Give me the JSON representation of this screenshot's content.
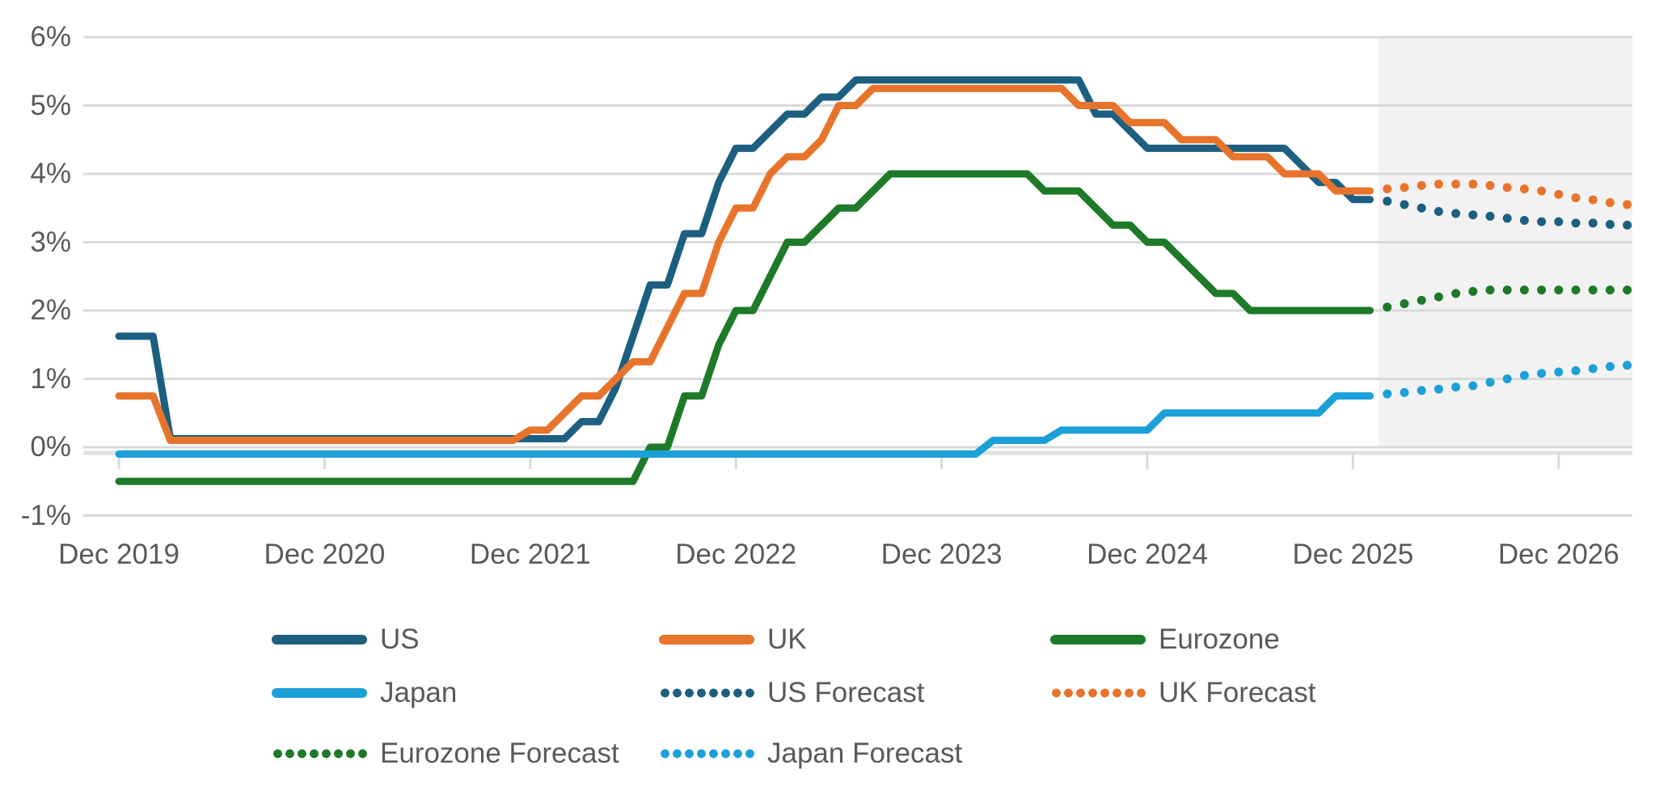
{
  "chart_data": {
    "type": "line",
    "title": "",
    "unit": "percent",
    "x_unit": "month",
    "x_start_label": "Dec 2019",
    "x_end_label": "Apr 2027",
    "ylim": [
      -1,
      6
    ],
    "grid": true,
    "y_ticks": [
      6,
      5,
      4,
      3,
      2,
      1,
      0,
      -1
    ],
    "y_tick_labels": [
      "6%",
      "5%",
      "4%",
      "3%",
      "2%",
      "1%",
      "0%",
      "-1%"
    ],
    "x_tick_labels": [
      "Dec 2019",
      "Dec 2020",
      "Dec 2021",
      "Dec 2022",
      "Dec 2023",
      "Dec 2024",
      "Dec 2025",
      "Dec 2026"
    ],
    "x_tick_month_indices": [
      0,
      12,
      24,
      36,
      48,
      60,
      72,
      84
    ],
    "colors": {
      "us": "#1D5F80",
      "uk": "#E8742C",
      "eurozone": "#1E7A28",
      "japan": "#1CA0D8",
      "gridline": "#D9D9D9",
      "axis": "#E2E2E2",
      "axis_text": "#595959",
      "forecast_shading": "#F2F2F2"
    },
    "forecast": {
      "shading_start_month_index": 73.5,
      "shading_color": "#F2F2F2"
    },
    "series": [
      {
        "name": "US",
        "color": "#1D5F80",
        "style": "solid",
        "start_index": 0,
        "values": [
          1.625,
          1.625,
          1.625,
          0.125,
          0.125,
          0.125,
          0.125,
          0.125,
          0.125,
          0.125,
          0.125,
          0.125,
          0.125,
          0.125,
          0.125,
          0.125,
          0.125,
          0.125,
          0.125,
          0.125,
          0.125,
          0.125,
          0.125,
          0.125,
          0.125,
          0.125,
          0.125,
          0.375,
          0.375,
          0.875,
          1.625,
          2.375,
          2.375,
          3.125,
          3.125,
          3.875,
          4.375,
          4.375,
          4.625,
          4.875,
          4.875,
          5.125,
          5.125,
          5.375,
          5.375,
          5.375,
          5.375,
          5.375,
          5.375,
          5.375,
          5.375,
          5.375,
          5.375,
          5.375,
          5.375,
          5.375,
          5.375,
          4.875,
          4.875,
          4.625,
          4.375,
          4.375,
          4.375,
          4.375,
          4.375,
          4.375,
          4.375,
          4.375,
          4.375,
          4.125,
          3.875,
          3.875,
          3.625,
          3.625
        ]
      },
      {
        "name": "UK",
        "color": "#E8742C",
        "style": "solid",
        "start_index": 0,
        "values": [
          0.75,
          0.75,
          0.75,
          0.1,
          0.1,
          0.1,
          0.1,
          0.1,
          0.1,
          0.1,
          0.1,
          0.1,
          0.1,
          0.1,
          0.1,
          0.1,
          0.1,
          0.1,
          0.1,
          0.1,
          0.1,
          0.1,
          0.1,
          0.1,
          0.25,
          0.25,
          0.5,
          0.75,
          0.75,
          1.0,
          1.25,
          1.25,
          1.75,
          2.25,
          2.25,
          3.0,
          3.5,
          3.5,
          4.0,
          4.25,
          4.25,
          4.5,
          5.0,
          5.0,
          5.25,
          5.25,
          5.25,
          5.25,
          5.25,
          5.25,
          5.25,
          5.25,
          5.25,
          5.25,
          5.25,
          5.25,
          5.0,
          5.0,
          5.0,
          4.75,
          4.75,
          4.75,
          4.5,
          4.5,
          4.5,
          4.25,
          4.25,
          4.25,
          4.0,
          4.0,
          4.0,
          3.75,
          3.75,
          3.75
        ]
      },
      {
        "name": "Eurozone",
        "color": "#1E7A28",
        "style": "solid",
        "start_index": 0,
        "values": [
          -0.5,
          -0.5,
          -0.5,
          -0.5,
          -0.5,
          -0.5,
          -0.5,
          -0.5,
          -0.5,
          -0.5,
          -0.5,
          -0.5,
          -0.5,
          -0.5,
          -0.5,
          -0.5,
          -0.5,
          -0.5,
          -0.5,
          -0.5,
          -0.5,
          -0.5,
          -0.5,
          -0.5,
          -0.5,
          -0.5,
          -0.5,
          -0.5,
          -0.5,
          -0.5,
          -0.5,
          0.0,
          0.0,
          0.75,
          0.75,
          1.5,
          2.0,
          2.0,
          2.5,
          3.0,
          3.0,
          3.25,
          3.5,
          3.5,
          3.75,
          4.0,
          4.0,
          4.0,
          4.0,
          4.0,
          4.0,
          4.0,
          4.0,
          4.0,
          3.75,
          3.75,
          3.75,
          3.5,
          3.25,
          3.25,
          3.0,
          3.0,
          2.75,
          2.5,
          2.25,
          2.25,
          2.0,
          2.0,
          2.0,
          2.0,
          2.0,
          2.0,
          2.0,
          2.0
        ]
      },
      {
        "name": "Japan",
        "color": "#1CA0D8",
        "style": "solid",
        "start_index": 0,
        "values": [
          -0.1,
          -0.1,
          -0.1,
          -0.1,
          -0.1,
          -0.1,
          -0.1,
          -0.1,
          -0.1,
          -0.1,
          -0.1,
          -0.1,
          -0.1,
          -0.1,
          -0.1,
          -0.1,
          -0.1,
          -0.1,
          -0.1,
          -0.1,
          -0.1,
          -0.1,
          -0.1,
          -0.1,
          -0.1,
          -0.1,
          -0.1,
          -0.1,
          -0.1,
          -0.1,
          -0.1,
          -0.1,
          -0.1,
          -0.1,
          -0.1,
          -0.1,
          -0.1,
          -0.1,
          -0.1,
          -0.1,
          -0.1,
          -0.1,
          -0.1,
          -0.1,
          -0.1,
          -0.1,
          -0.1,
          -0.1,
          -0.1,
          -0.1,
          -0.1,
          0.1,
          0.1,
          0.1,
          0.1,
          0.25,
          0.25,
          0.25,
          0.25,
          0.25,
          0.25,
          0.5,
          0.5,
          0.5,
          0.5,
          0.5,
          0.5,
          0.5,
          0.5,
          0.5,
          0.5,
          0.75,
          0.75,
          0.75
        ]
      },
      {
        "name": "US Forecast",
        "color": "#1D5F80",
        "style": "dotted",
        "start_index": 73,
        "values": [
          3.625,
          3.6,
          3.55,
          3.5,
          3.45,
          3.42,
          3.4,
          3.38,
          3.35,
          3.32,
          3.3,
          3.3,
          3.28,
          3.28,
          3.26,
          3.25
        ]
      },
      {
        "name": "UK Forecast",
        "color": "#E8742C",
        "style": "dotted",
        "start_index": 73,
        "values": [
          3.75,
          3.78,
          3.8,
          3.83,
          3.85,
          3.85,
          3.85,
          3.83,
          3.8,
          3.78,
          3.75,
          3.7,
          3.65,
          3.62,
          3.58,
          3.55
        ]
      },
      {
        "name": "Eurozone Forecast",
        "color": "#1E7A28",
        "style": "dotted",
        "start_index": 73,
        "values": [
          2.0,
          2.05,
          2.1,
          2.15,
          2.2,
          2.25,
          2.28,
          2.3,
          2.3,
          2.3,
          2.3,
          2.3,
          2.3,
          2.3,
          2.3,
          2.3
        ]
      },
      {
        "name": "Japan Forecast",
        "color": "#1CA0D8",
        "style": "dotted",
        "start_index": 73,
        "values": [
          0.75,
          0.78,
          0.8,
          0.83,
          0.85,
          0.88,
          0.9,
          0.95,
          1.0,
          1.05,
          1.08,
          1.1,
          1.12,
          1.15,
          1.18,
          1.2
        ]
      }
    ],
    "legend": {
      "position": "bottom",
      "items": [
        {
          "label": "US",
          "color": "#1D5F80",
          "style": "solid"
        },
        {
          "label": "UK",
          "color": "#E8742C",
          "style": "solid"
        },
        {
          "label": "Eurozone",
          "color": "#1E7A28",
          "style": "solid"
        },
        {
          "label": "Japan",
          "color": "#1CA0D8",
          "style": "solid"
        },
        {
          "label": "US Forecast",
          "color": "#1D5F80",
          "style": "dotted"
        },
        {
          "label": "UK Forecast",
          "color": "#E8742C",
          "style": "dotted"
        },
        {
          "label": "Eurozone Forecast",
          "color": "#1E7A28",
          "style": "dotted"
        },
        {
          "label": "Japan Forecast",
          "color": "#1CA0D8",
          "style": "dotted"
        }
      ]
    }
  }
}
